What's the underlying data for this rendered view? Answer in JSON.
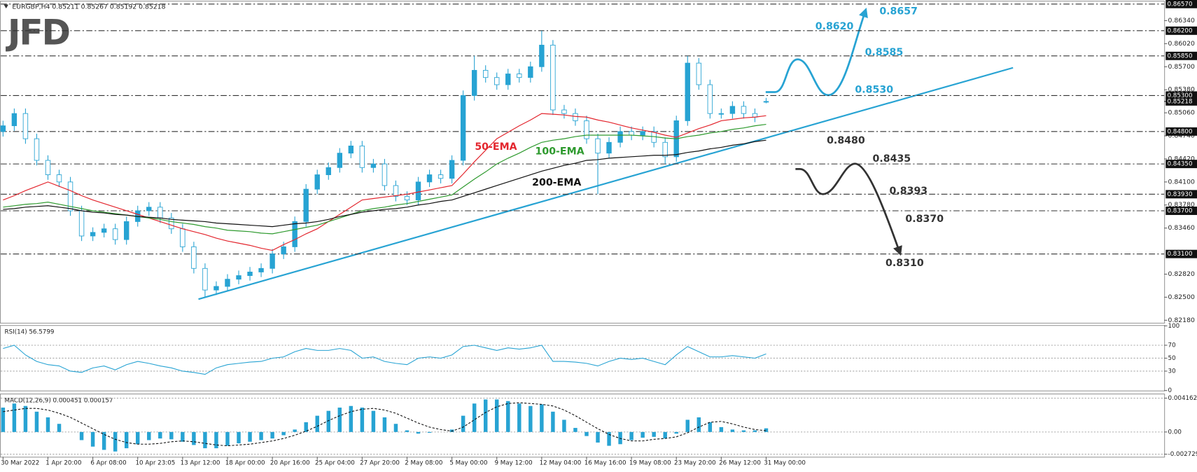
{
  "chart_data": {
    "type": "candlestick",
    "title": "EURGBP,H4  0.85211 0.85267 0.85192 0.85218",
    "logo": "JFD",
    "color": "#27a3d3",
    "categories": [
      "30 Mar 2022",
      null,
      null,
      null,
      "1 Apr 20:00",
      null,
      null,
      null,
      "6 Apr 08:00",
      null,
      null,
      null,
      "10 Apr 23:05",
      null,
      null,
      null,
      "13 Apr 12:00",
      null,
      null,
      null,
      "18 Apr 00:00",
      null,
      null,
      null,
      "20 Apr 16:00",
      null,
      null,
      null,
      "25 Apr 04:00",
      null,
      null,
      null,
      "27 Apr 20:00",
      null,
      null,
      null,
      "2 May 08:00",
      null,
      null,
      null,
      "5 May 00:00",
      null,
      null,
      null,
      "9 May 12:00",
      null,
      null,
      null,
      "12 May 04:00",
      null,
      null,
      null,
      "16 May 16:00",
      null,
      null,
      null,
      "19 May 08:00",
      null,
      null,
      null,
      "23 May 20:00",
      null,
      null,
      null,
      "26 May 12:00",
      null,
      null,
      null,
      "31 May 00:00"
    ],
    "open": [
      0.848,
      0.8488,
      0.8505,
      0.847,
      0.844,
      0.842,
      0.841,
      0.837,
      0.8335,
      0.834,
      0.8345,
      0.833,
      0.8355,
      0.837,
      0.8375,
      0.836,
      0.8345,
      0.832,
      0.829,
      0.826,
      0.8265,
      0.8275,
      0.828,
      0.8285,
      0.829,
      0.831,
      0.832,
      0.8355,
      0.84,
      0.842,
      0.843,
      0.845,
      0.846,
      0.843,
      0.8435,
      0.8405,
      0.839,
      0.8385,
      0.841,
      0.842,
      0.8415,
      0.844,
      0.853,
      0.8565,
      0.8555,
      0.8545,
      0.856,
      0.8555,
      0.857,
      0.86,
      0.851,
      0.8505,
      0.8495,
      0.847,
      0.845,
      0.8465,
      0.848,
      0.8475,
      0.848,
      0.8465,
      0.8445,
      0.8495,
      0.8575,
      0.8545,
      0.8505,
      0.8505,
      0.8515,
      0.8505,
      0.85211
    ],
    "high": [
      0.8495,
      0.8512,
      0.8512,
      0.8477,
      0.8447,
      0.8427,
      0.8417,
      0.8377,
      0.8347,
      0.8352,
      0.8352,
      0.8362,
      0.8377,
      0.8382,
      0.8382,
      0.8367,
      0.8352,
      0.8327,
      0.8297,
      0.8272,
      0.8282,
      0.8287,
      0.8292,
      0.8297,
      0.8317,
      0.8327,
      0.8362,
      0.8407,
      0.8427,
      0.8437,
      0.8457,
      0.8467,
      0.8467,
      0.8442,
      0.8442,
      0.8412,
      0.8397,
      0.8417,
      0.8427,
      0.8427,
      0.8447,
      0.8537,
      0.8585,
      0.8572,
      0.8562,
      0.8567,
      0.8567,
      0.8577,
      0.862,
      0.8607,
      0.8517,
      0.8512,
      0.8502,
      0.8477,
      0.8472,
      0.8487,
      0.8487,
      0.8487,
      0.8487,
      0.8472,
      0.8502,
      0.8585,
      0.8582,
      0.8552,
      0.8512,
      0.8522,
      0.8522,
      0.8512,
      0.85267
    ],
    "low": [
      0.8473,
      0.8481,
      0.8463,
      0.8433,
      0.8413,
      0.8403,
      0.8363,
      0.8328,
      0.8328,
      0.8333,
      0.8323,
      0.8323,
      0.8348,
      0.8363,
      0.8353,
      0.8338,
      0.8313,
      0.8283,
      0.825,
      0.8253,
      0.8258,
      0.8268,
      0.8273,
      0.8278,
      0.8283,
      0.8303,
      0.8313,
      0.8348,
      0.8393,
      0.8413,
      0.8423,
      0.8443,
      0.8423,
      0.8423,
      0.8398,
      0.8383,
      0.8378,
      0.8378,
      0.8403,
      0.8408,
      0.8408,
      0.8433,
      0.8523,
      0.8548,
      0.8538,
      0.8538,
      0.8548,
      0.8548,
      0.8563,
      0.8503,
      0.8498,
      0.8488,
      0.8463,
      0.8393,
      0.8443,
      0.8458,
      0.8468,
      0.8468,
      0.8458,
      0.8435,
      0.8438,
      0.8488,
      0.8538,
      0.8498,
      0.8498,
      0.8498,
      0.8498,
      0.8493,
      0.85192
    ],
    "close": [
      0.8488,
      0.8505,
      0.847,
      0.844,
      0.842,
      0.841,
      0.837,
      0.8335,
      0.834,
      0.8345,
      0.833,
      0.8355,
      0.837,
      0.8375,
      0.836,
      0.8345,
      0.832,
      0.829,
      0.826,
      0.8265,
      0.8275,
      0.828,
      0.8285,
      0.829,
      0.831,
      0.832,
      0.8355,
      0.84,
      0.842,
      0.843,
      0.845,
      0.846,
      0.843,
      0.8435,
      0.8405,
      0.839,
      0.8385,
      0.841,
      0.842,
      0.8415,
      0.844,
      0.853,
      0.8565,
      0.8555,
      0.8545,
      0.856,
      0.8555,
      0.857,
      0.86,
      0.851,
      0.8505,
      0.8495,
      0.847,
      0.845,
      0.8465,
      0.848,
      0.8475,
      0.848,
      0.8465,
      0.8445,
      0.8495,
      0.8575,
      0.8545,
      0.8505,
      0.8505,
      0.8515,
      0.8505,
      0.85,
      0.85218
    ],
    "ylim": [
      0.82145,
      0.86605
    ],
    "yticks": [
      {
        "value": 0.8218,
        "label": "0.82180"
      },
      {
        "value": 0.825,
        "label": "0.82500"
      },
      {
        "value": 0.8282,
        "label": "0.82820"
      },
      {
        "value": 0.8346,
        "label": "0.83460"
      },
      {
        "value": 0.8378,
        "label": "0.83780"
      },
      {
        "value": 0.841,
        "label": "0.84100"
      },
      {
        "value": 0.8442,
        "label": "0.84420"
      },
      {
        "value": 0.8474,
        "label": "0.84740"
      },
      {
        "value": 0.8506,
        "label": "0.85060"
      },
      {
        "value": 0.8538,
        "label": "0.85380"
      },
      {
        "value": 0.857,
        "label": "0.85700"
      },
      {
        "value": 0.8602,
        "label": "0.86020"
      },
      {
        "value": 0.8634,
        "label": "0.86340"
      }
    ],
    "levels": [
      {
        "value": 0.8657,
        "label": "0.86570"
      },
      {
        "value": 0.862,
        "label": "0.86200"
      },
      {
        "value": 0.8585,
        "label": "0.85850"
      },
      {
        "value": 0.853,
        "label": "0.85300"
      },
      {
        "value": 0.848,
        "label": "0.84800"
      },
      {
        "value": 0.8435,
        "label": "0.84350"
      },
      {
        "value": 0.8393,
        "label": "0.83930"
      },
      {
        "value": 0.837,
        "label": "0.83700"
      },
      {
        "value": 0.831,
        "label": "0.83100"
      }
    ],
    "current_price": {
      "value": 0.85218,
      "label": "0.85218"
    },
    "series": [
      {
        "name": "50-EMA",
        "color": "#e3262e",
        "values": [
          0.8385,
          0.8391,
          0.8398,
          0.8404,
          0.841,
          0.8404,
          0.8398,
          0.8391,
          0.8385,
          0.838,
          0.8375,
          0.837,
          0.8365,
          0.836,
          0.8355,
          0.835,
          0.8345,
          0.8341,
          0.8337,
          0.8332,
          0.8328,
          0.8325,
          0.8322,
          0.8318,
          0.8315,
          0.8323,
          0.833,
          0.8338,
          0.8345,
          0.8355,
          0.8365,
          0.8375,
          0.8385,
          0.8387,
          0.8389,
          0.8391,
          0.8393,
          0.8396,
          0.8399,
          0.8402,
          0.8405,
          0.8421,
          0.8438,
          0.8454,
          0.847,
          0.8479,
          0.8488,
          0.8496,
          0.8505,
          0.8504,
          0.8503,
          0.8501,
          0.85,
          0.8496,
          0.8493,
          0.8489,
          0.8485,
          0.8482,
          0.8479,
          0.8475,
          0.8472,
          0.8478,
          0.8484,
          0.8489,
          0.8495,
          0.8497,
          0.8499,
          0.85,
          0.8502
        ]
      },
      {
        "name": "100-EMA",
        "color": "#2e9a2e",
        "values": [
          0.8375,
          0.8377,
          0.8379,
          0.838,
          0.8382,
          0.8379,
          0.8376,
          0.8373,
          0.837,
          0.8368,
          0.8366,
          0.8364,
          0.8362,
          0.836,
          0.8358,
          0.8355,
          0.8353,
          0.8351,
          0.8348,
          0.8346,
          0.8343,
          0.8342,
          0.8341,
          0.8339,
          0.8338,
          0.8341,
          0.8344,
          0.8347,
          0.835,
          0.8355,
          0.836,
          0.8365,
          0.837,
          0.8373,
          0.8375,
          0.8378,
          0.838,
          0.8383,
          0.8386,
          0.8389,
          0.8392,
          0.8403,
          0.8414,
          0.8424,
          0.8435,
          0.8443,
          0.845,
          0.8458,
          0.8465,
          0.8468,
          0.847,
          0.8473,
          0.8475,
          0.8475,
          0.8475,
          0.8475,
          0.8475,
          0.8474,
          0.8473,
          0.8471,
          0.847,
          0.8473,
          0.8475,
          0.8478,
          0.848,
          0.8483,
          0.8485,
          0.8488,
          0.849
        ]
      },
      {
        "name": "200-EMA",
        "color": "#111111",
        "values": [
          0.8372,
          0.8373,
          0.8375,
          0.8376,
          0.8377,
          0.8375,
          0.8373,
          0.837,
          0.8368,
          0.8367,
          0.8365,
          0.8364,
          0.8362,
          0.8361,
          0.836,
          0.8358,
          0.8357,
          0.8356,
          0.8355,
          0.8353,
          0.8352,
          0.8351,
          0.835,
          0.8349,
          0.8348,
          0.835,
          0.8352,
          0.8353,
          0.8355,
          0.8358,
          0.8362,
          0.8365,
          0.8368,
          0.837,
          0.8372,
          0.8373,
          0.8375,
          0.8378,
          0.838,
          0.8383,
          0.8385,
          0.839,
          0.8395,
          0.84,
          0.8405,
          0.841,
          0.8415,
          0.842,
          0.8425,
          0.8429,
          0.8433,
          0.8436,
          0.844,
          0.8441,
          0.8443,
          0.8444,
          0.8445,
          0.8446,
          0.8447,
          0.8447,
          0.8448,
          0.8451,
          0.8453,
          0.8456,
          0.8458,
          0.8461,
          0.8463,
          0.8466,
          0.8468
        ]
      }
    ],
    "annotations": {
      "bullish": [
        "0.8657",
        "0.8620",
        "0.8585",
        "0.8530"
      ],
      "bearish": [
        "0.8480",
        "0.8435",
        "0.8393",
        "0.8370",
        "0.8310"
      ]
    },
    "indicators": [
      {
        "type": "line",
        "title": "RSI(14) 56.5799",
        "color": "#27a3d3",
        "ylim": [
          0,
          100
        ],
        "yticks": [
          100,
          70,
          50,
          30,
          0
        ],
        "values": [
          65,
          70,
          55,
          45,
          40,
          38,
          30,
          28,
          35,
          38,
          32,
          40,
          45,
          42,
          38,
          35,
          30,
          28,
          25,
          35,
          40,
          42,
          44,
          45,
          50,
          52,
          60,
          65,
          62,
          62,
          65,
          62,
          50,
          52,
          45,
          42,
          40,
          50,
          52,
          50,
          55,
          68,
          70,
          66,
          62,
          66,
          64,
          66,
          70,
          45,
          45,
          44,
          42,
          38,
          45,
          50,
          48,
          50,
          45,
          40,
          55,
          68,
          60,
          52,
          52,
          54,
          52,
          50,
          56.5799
        ]
      },
      {
        "type": "histogram",
        "title": "MACD(12,26,9) 0.000451 0.000157",
        "color": "#27a3d3",
        "ylim": [
          -0.00305,
          0.00463
        ],
        "yticks": [
          0.004162,
          {
            "value": 0,
            "label": "0.00"
          },
          -0.002729
        ],
        "values": [
          0.003,
          0.0035,
          0.0032,
          0.0025,
          0.0018,
          0.001,
          0.0,
          -0.001,
          -0.0018,
          -0.0022,
          -0.0024,
          -0.002,
          -0.0015,
          -0.001,
          -0.0008,
          -0.0009,
          -0.0012,
          -0.0016,
          -0.002,
          -0.002,
          -0.0017,
          -0.0014,
          -0.0012,
          -0.001,
          -0.0008,
          -0.0004,
          0.0003,
          0.0012,
          0.002,
          0.0026,
          0.003,
          0.0032,
          0.003,
          0.0026,
          0.0018,
          0.001,
          0.0002,
          -0.0002,
          -0.0001,
          0.0,
          0.0003,
          0.002,
          0.0035,
          0.004,
          0.004,
          0.0038,
          0.0035,
          0.0032,
          0.0034,
          0.0025,
          0.0015,
          0.0005,
          -0.0005,
          -0.0013,
          -0.0017,
          -0.0015,
          -0.001,
          -0.0007,
          -0.0006,
          -0.0008,
          -0.0002,
          0.0015,
          0.0018,
          0.0012,
          0.0006,
          0.0003,
          0.0002,
          0.0002,
          0.000451
        ],
        "signal": [
          0.0025,
          0.0027,
          0.0029,
          0.0029,
          0.0027,
          0.0023,
          0.0018,
          0.0011,
          0.0004,
          -0.0003,
          -0.0009,
          -0.0013,
          -0.0015,
          -0.0015,
          -0.0014,
          -0.0012,
          -0.0011,
          -0.0012,
          -0.0014,
          -0.0016,
          -0.0017,
          -0.0016,
          -0.0015,
          -0.0013,
          -0.0011,
          -0.0008,
          -0.0004,
          0.0001,
          0.0007,
          0.0014,
          0.002,
          0.0025,
          0.0028,
          0.0029,
          0.0027,
          0.0023,
          0.0017,
          0.0011,
          0.0006,
          0.0003,
          0.0001,
          0.0006,
          0.0015,
          0.0024,
          0.0031,
          0.0035,
          0.0036,
          0.0035,
          0.0034,
          0.0032,
          0.0027,
          0.002,
          0.0012,
          0.0004,
          -0.0003,
          -0.0008,
          -0.0011,
          -0.0011,
          -0.0009,
          -0.0008,
          -0.0006,
          -0.0001,
          0.0006,
          0.0012,
          0.0013,
          0.001,
          0.0006,
          0.0003,
          0.000157
        ]
      }
    ]
  }
}
